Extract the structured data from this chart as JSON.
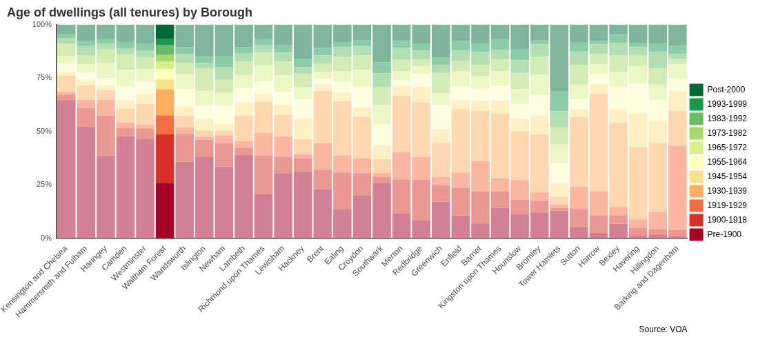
{
  "chart_data": {
    "type": "bar",
    "title": "Age of dwellings (all tenures) by Borough",
    "stacked": true,
    "legend": "right",
    "grid": false,
    "categories": [
      "Kensington and Chelsea",
      "Hammersmith and Fulham",
      "Haringey",
      "Camden",
      "Westminster",
      "Waltham Forest",
      "Wandsworth",
      "Islington",
      "Newham",
      "Lambeth",
      "Richmond upon Thames",
      "Lewisham",
      "Hackney",
      "Brent",
      "Ealing",
      "Croydon",
      "Southwark",
      "Merton",
      "Redbridge",
      "Greenwich",
      "Enfield",
      "Barnet",
      "Kingston upon Thames",
      "Hounslow",
      "Bromley",
      "Tower Hamlets",
      "Sutton",
      "Harrow",
      "Bexley",
      "Havering",
      "Hillingdon",
      "Barking and Dagenham"
    ],
    "ylim": [
      0,
      100
    ],
    "yticks": [
      {
        "value": 0,
        "label": "0%"
      },
      {
        "value": 25,
        "label": "25%"
      },
      {
        "value": 50,
        "label": "50%"
      },
      {
        "value": 75,
        "label": "75%"
      },
      {
        "value": 100,
        "label": "100%"
      }
    ],
    "annotations": [
      "Source: VOA"
    ],
    "series": [
      {
        "name": "Pre-1900",
        "color": "#a50026",
        "colors": [
          "#d28093",
          "#d28093",
          "#d28093",
          "#d28093",
          "#d28093",
          "#a50026",
          "#d28093",
          "#d28093",
          "#d28093",
          "#d28093",
          "#d28093",
          "#d28093",
          "#d28093",
          "#d28093",
          "#d28093",
          "#d28093",
          "#d28093",
          "#d28093",
          "#d28093",
          "#d28093",
          "#d28093",
          "#d28093",
          "#d28093",
          "#d28093",
          "#d28093",
          "#d28093",
          "#d28093",
          "#d28093",
          "#d28093",
          "#d28093",
          "#d28093",
          "#d28093"
        ],
        "values": [
          64.8,
          52.4,
          38.7,
          47.7,
          46.6,
          26.0,
          35.9,
          38.0,
          33.6,
          39.1,
          20.6,
          30.5,
          31.4,
          23.0,
          13.5,
          20.2,
          26.0,
          11.8,
          8.3,
          17.1,
          10.7,
          7.0,
          14.2,
          11.4,
          12.1,
          13.0,
          5.1,
          2.5,
          6.8,
          1.5,
          1.6,
          1.0
        ]
      },
      {
        "name": "1900-1918",
        "color": "#d73027",
        "colors": [
          "#eb9893",
          "#eb9893",
          "#eb9893",
          "#eb9893",
          "#eb9893",
          "#d73027",
          "#eb9893",
          "#eb9893",
          "#eb9893",
          "#eb9893",
          "#eb9893",
          "#eb9893",
          "#eb9893",
          "#eb9893",
          "#eb9893",
          "#eb9893",
          "#eb9893",
          "#eb9893",
          "#eb9893",
          "#eb9893",
          "#eb9893",
          "#eb9893",
          "#eb9893",
          "#eb9893",
          "#eb9893",
          "#eb9893",
          "#eb9893",
          "#eb9893",
          "#eb9893",
          "#eb9893",
          "#eb9893",
          "#eb9893"
        ],
        "values": [
          2.4,
          8.5,
          18.7,
          3.8,
          4.6,
          22.7,
          13.0,
          8.1,
          10.9,
          3.3,
          18.2,
          7.6,
          6.1,
          9.1,
          17.3,
          10.3,
          2.6,
          15.8,
          19.1,
          7.7,
          12.8,
          14.9,
          7.7,
          6.6,
          5.3,
          1.2,
          8.6,
          8.3,
          4.0,
          3.3,
          2.8,
          3.1
        ]
      },
      {
        "name": "1919-1929",
        "color": "#f46d43",
        "colors": [
          "#fab6a1",
          "#fab6a1",
          "#fab6a1",
          "#fab6a1",
          "#fab6a1",
          "#f46d43",
          "#fab6a1",
          "#fab6a1",
          "#fab6a1",
          "#fab6a1",
          "#fab6a1",
          "#fab6a1",
          "#fab6a1",
          "#fab6a1",
          "#fab6a1",
          "#fab6a1",
          "#fab6a1",
          "#fab6a1",
          "#fab6a1",
          "#fab6a1",
          "#fab6a1",
          "#fab6a1",
          "#fab6a1",
          "#fab6a1",
          "#fab6a1",
          "#fab6a1",
          "#fab6a1",
          "#fab6a1",
          "#fab6a1",
          "#fab6a1",
          "#fab6a1",
          "#fab6a1"
        ],
        "values": [
          1.3,
          3.9,
          7.4,
          2.8,
          2.1,
          8.9,
          3.0,
          1.3,
          3.7,
          3.0,
          10.5,
          9.5,
          1.9,
          12.3,
          8.0,
          7.0,
          1.9,
          12.8,
          10.7,
          3.8,
          7.3,
          14.2,
          6.1,
          9.3,
          4.1,
          1.7,
          10.5,
          11.1,
          4.1,
          4.1,
          7.9,
          39.3
        ]
      },
      {
        "name": "1930-1939",
        "color": "#fdae61",
        "colors": [
          "#fed7b0",
          "#fed7b0",
          "#fed7b0",
          "#fed7b0",
          "#fed7b0",
          "#fdae61",
          "#fed7b0",
          "#fed7b0",
          "#fed7b0",
          "#fed7b0",
          "#fed7b0",
          "#fed7b0",
          "#fed7b0",
          "#fed7b0",
          "#fed7b0",
          "#fed7b0",
          "#fed7b0",
          "#fed7b0",
          "#fed7b0",
          "#fed7b0",
          "#fed7b0",
          "#fed7b0",
          "#fed7b0",
          "#fed7b0",
          "#fed7b0",
          "#fed7b0",
          "#fed7b0",
          "#fed7b0",
          "#fed7b0",
          "#fed7b0",
          "#fed7b0",
          "#fed7b0"
        ],
        "values": [
          7.5,
          6.7,
          4.5,
          6.4,
          9.6,
          12.0,
          5.3,
          3.1,
          2.3,
          12.1,
          14.6,
          10.2,
          7.0,
          24.6,
          25.4,
          19.4,
          6.7,
          26.3,
          25.5,
          16.2,
          29.6,
          23.6,
          30.2,
          22.6,
          27.1,
          3.5,
          32.5,
          45.5,
          39.1,
          33.7,
          32.4,
          16.3
        ]
      },
      {
        "name": "1945-1954",
        "color": "#fee08b",
        "colors": [
          "#ffefc5",
          "#ffefc5",
          "#ffefc5",
          "#ffefc5",
          "#ffefc5",
          "#fee08b",
          "#ffefc5",
          "#ffefc5",
          "#ffefc5",
          "#ffefc5",
          "#ffefc5",
          "#ffefc5",
          "#ffefc5",
          "#ffefc5",
          "#ffefc5",
          "#ffefc5",
          "#ffefc5",
          "#ffefc5",
          "#ffefc5",
          "#ffefc5",
          "#ffefc5",
          "#ffefc5",
          "#ffefc5",
          "#ffefc5",
          "#ffefc5",
          "#ffefc5",
          "#ffefc5",
          "#ffefc5",
          "#ffefc5",
          "#ffefc5",
          "#ffefc5",
          "#ffefc5"
        ],
        "values": [
          1.9,
          2.5,
          2.2,
          3.8,
          4.8,
          4.7,
          4.5,
          5.4,
          3.1,
          6.1,
          3.8,
          4.8,
          9.5,
          3.1,
          4.1,
          4.4,
          6.3,
          4.5,
          7.3,
          6.4,
          4.4,
          4.8,
          6.3,
          6.0,
          8.9,
          6.3,
          3.7,
          4.7,
          6.7,
          15.9,
          10.3,
          9.3
        ]
      },
      {
        "name": "1955-1964",
        "color": "#ffffbf",
        "colors": [
          "#ffffdf",
          "#ffffdf",
          "#ffffdf",
          "#ffffdf",
          "#ffffdf",
          "#ffffbf",
          "#ffffdf",
          "#ffffdf",
          "#ffffdf",
          "#ffffdf",
          "#ffffdf",
          "#ffffdf",
          "#ffffdf",
          "#ffffdf",
          "#ffffdf",
          "#ffffdf",
          "#ffffdf",
          "#ffffdf",
          "#ffffdf",
          "#ffffdf",
          "#ffffdf",
          "#ffffdf",
          "#ffffdf",
          "#ffffdf",
          "#ffffdf",
          "#ffffdf",
          "#ffffdf",
          "#ffffdf",
          "#ffffdf",
          "#ffffdf",
          "#ffffdf",
          "#ffffdf"
        ],
        "values": [
          3.8,
          3.5,
          3.5,
          6.7,
          5.6,
          4.8,
          8.2,
          6.1,
          8.1,
          6.6,
          5.7,
          6.0,
          9.2,
          2.4,
          4.8,
          9.9,
          9.9,
          2.5,
          6.0,
          11.1,
          6.4,
          5.5,
          7.0,
          7.0,
          9.6,
          9.3,
          4.7,
          4.8,
          10.2,
          14.0,
          9.8,
          5.8
        ]
      },
      {
        "name": "1965-1972",
        "color": "#d9ef8b",
        "colors": [
          "#ecf7c5",
          "#ecf7c5",
          "#ecf7c5",
          "#ecf7c5",
          "#ecf7c5",
          "#d9ef8b",
          "#ecf7c5",
          "#ecf7c5",
          "#ecf7c5",
          "#ecf7c5",
          "#ecf7c5",
          "#ecf7c5",
          "#ecf7c5",
          "#ecf7c5",
          "#ecf7c5",
          "#ecf7c5",
          "#ecf7c5",
          "#ecf7c5",
          "#ecf7c5",
          "#ecf7c5",
          "#ecf7c5",
          "#ecf7c5",
          "#ecf7c5",
          "#ecf7c5",
          "#ecf7c5",
          "#ecf7c5",
          "#ecf7c5",
          "#ecf7c5",
          "#ecf7c5",
          "#ecf7c5",
          "#ecf7c5",
          "#ecf7c5"
        ],
        "values": [
          3.5,
          3.8,
          7.1,
          7.6,
          5.8,
          3.5,
          7.0,
          7.0,
          6.6,
          6.2,
          7.3,
          7.7,
          5.8,
          3.4,
          5.2,
          7.7,
          8.9,
          4.5,
          3.6,
          5.5,
          6.8,
          6.0,
          6.7,
          6.8,
          9.5,
          8.9,
          6.8,
          4.5,
          7.0,
          7.9,
          7.1,
          6.6
        ]
      },
      {
        "name": "1973-1982",
        "color": "#a6d96a",
        "colors": [
          "#d3ecb5",
          "#d3ecb5",
          "#d3ecb5",
          "#d3ecb5",
          "#d3ecb5",
          "#a6d96a",
          "#d3ecb5",
          "#d3ecb5",
          "#d3ecb5",
          "#d3ecb5",
          "#d3ecb5",
          "#d3ecb5",
          "#d3ecb5",
          "#d3ecb5",
          "#d3ecb5",
          "#d3ecb5",
          "#d3ecb5",
          "#d3ecb5",
          "#d3ecb5",
          "#d3ecb5",
          "#d3ecb5",
          "#d3ecb5",
          "#d3ecb5",
          "#d3ecb5",
          "#d3ecb5",
          "#d3ecb5",
          "#d3ecb5",
          "#d3ecb5",
          "#d3ecb5",
          "#d3ecb5",
          "#d3ecb5",
          "#d3ecb5"
        ],
        "values": [
          5.7,
          4.2,
          6.1,
          7.1,
          5.6,
          3.2,
          5.2,
          10.6,
          5.9,
          6.2,
          6.2,
          6.3,
          6.0,
          3.8,
          6.7,
          6.7,
          8.4,
          5.3,
          3.1,
          9.5,
          4.9,
          5.1,
          5.5,
          7.5,
          8.4,
          8.0,
          9.1,
          4.8,
          7.6,
          5.4,
          7.5,
          2.5
        ]
      },
      {
        "name": "1983-1992",
        "color": "#66bd63",
        "colors": [
          "#b3deb1",
          "#b3deb1",
          "#b3deb1",
          "#b3deb1",
          "#b3deb1",
          "#66bd63",
          "#b3deb1",
          "#b3deb1",
          "#b3deb1",
          "#b3deb1",
          "#b3deb1",
          "#b3deb1",
          "#b3deb1",
          "#b3deb1",
          "#b3deb1",
          "#b3deb1",
          "#b3deb1",
          "#b3deb1",
          "#b3deb1",
          "#b3deb1",
          "#b3deb1",
          "#b3deb1",
          "#b3deb1",
          "#b3deb1",
          "#b3deb1",
          "#b3deb1",
          "#b3deb1",
          "#b3deb1",
          "#b3deb1",
          "#b3deb1",
          "#b3deb1",
          "#b3deb1"
        ],
        "values": [
          2.6,
          4.5,
          2.9,
          2.8,
          3.0,
          4.5,
          4.0,
          2.4,
          5.9,
          3.8,
          3.4,
          4.3,
          3.2,
          3.9,
          4.4,
          4.4,
          6.5,
          5.6,
          4.2,
          3.7,
          4.9,
          6.1,
          4.3,
          6.1,
          5.8,
          7.5,
          6.4,
          4.5,
          6.0,
          3.7,
          7.8,
          2.3
        ]
      },
      {
        "name": "1993-1999",
        "color": "#1a9850",
        "colors": [
          "#8dcca8",
          "#8dcca8",
          "#8dcca8",
          "#8dcca8",
          "#8dcca8",
          "#1a9850",
          "#8dcca8",
          "#8dcca8",
          "#8dcca8",
          "#8dcca8",
          "#8dcca8",
          "#8dcca8",
          "#8dcca8",
          "#8dcca8",
          "#8dcca8",
          "#8dcca8",
          "#8dcca8",
          "#8dcca8",
          "#8dcca8",
          "#8dcca8",
          "#8dcca8",
          "#8dcca8",
          "#8dcca8",
          "#8dcca8",
          "#8dcca8",
          "#8dcca8",
          "#8dcca8",
          "#8dcca8",
          "#8dcca8",
          "#8dcca8",
          "#8dcca8",
          "#8dcca8"
        ],
        "values": [
          2.2,
          2.3,
          2.3,
          3.1,
          3.4,
          3.1,
          3.4,
          3.0,
          5.3,
          3.1,
          3.1,
          3.4,
          4.0,
          3.4,
          2.4,
          2.8,
          5.2,
          3.2,
          3.4,
          3.7,
          4.4,
          4.0,
          5.2,
          4.8,
          2.0,
          9.5,
          4.4,
          1.5,
          3.7,
          2.0,
          3.8,
          3.8
        ]
      },
      {
        "name": "Post-2000",
        "color": "#006837",
        "colors": [
          "#80b49b",
          "#80b49b",
          "#80b49b",
          "#80b49b",
          "#80b49b",
          "#006837",
          "#80b49b",
          "#80b49b",
          "#80b49b",
          "#80b49b",
          "#80b49b",
          "#80b49b",
          "#80b49b",
          "#80b49b",
          "#80b49b",
          "#80b49b",
          "#80b49b",
          "#80b49b",
          "#80b49b",
          "#80b49b",
          "#80b49b",
          "#80b49b",
          "#80b49b",
          "#80b49b",
          "#80b49b",
          "#80b49b",
          "#80b49b",
          "#80b49b",
          "#80b49b",
          "#80b49b",
          "#80b49b",
          "#80b49b"
        ],
        "values": [
          4.3,
          7.7,
          6.6,
          8.2,
          8.9,
          6.6,
          10.5,
          15.0,
          14.6,
          10.5,
          6.6,
          9.7,
          15.9,
          11.0,
          8.2,
          7.2,
          17.6,
          7.7,
          8.8,
          15.3,
          7.8,
          8.8,
          6.8,
          11.9,
          7.2,
          31.1,
          8.2,
          7.8,
          4.8,
          8.5,
          9.0,
          10.0
        ]
      }
    ]
  }
}
